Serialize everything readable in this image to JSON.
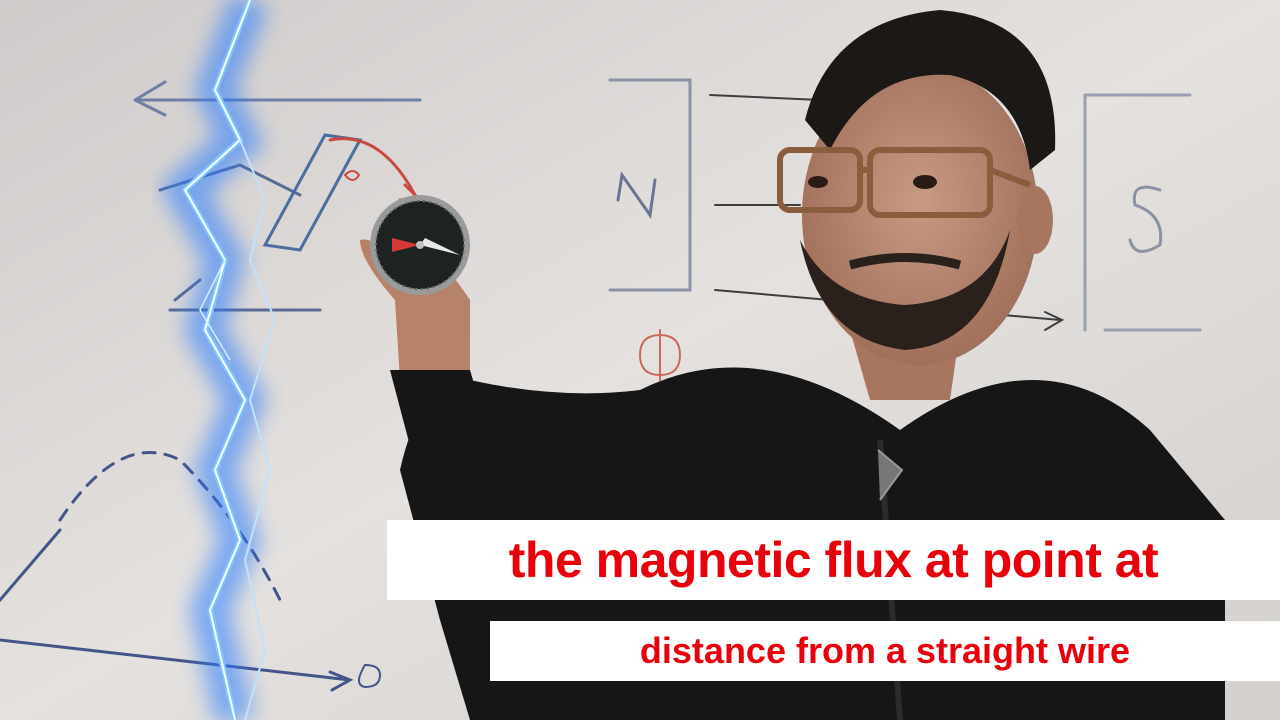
{
  "captions": {
    "line1": "the magnetic flux at point at",
    "line2": "distance from a straight wire"
  },
  "whiteboard": {
    "pole_north": "N",
    "pole_south": "S",
    "angle_label": "θ1"
  },
  "colors": {
    "caption_text": "#e8000b",
    "caption_bg": "#ffffff",
    "lightning": "#4aa8ff",
    "whiteboard": "#dcd8d6"
  }
}
